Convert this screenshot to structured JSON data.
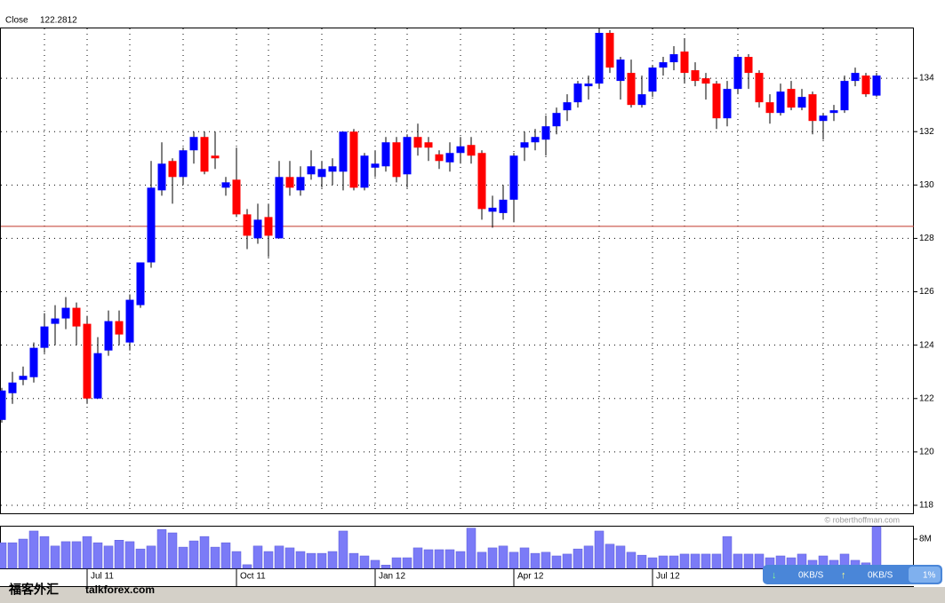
{
  "chart_data": {
    "type": "candlestick",
    "header_label": "Close",
    "header_value": 122.2812,
    "watermark": "© roberthoffman.com",
    "site_cn": "福客外汇",
    "site": "talkforex.com",
    "up_color": "#0000ff",
    "down_color": "#ff0000",
    "cursor_color": "#c0392b",
    "cursor_line": 128.45,
    "categories": [
      null,
      null,
      null,
      null,
      null,
      null,
      null,
      null,
      "Jul 11",
      null,
      null,
      null,
      null,
      null,
      null,
      null,
      null,
      null,
      null,
      null,
      null,
      null,
      "Oct 11",
      null,
      null,
      null,
      null,
      null,
      null,
      null,
      null,
      null,
      null,
      null,
      null,
      "Jan 12",
      null,
      null,
      null,
      null,
      null,
      null,
      null,
      null,
      null,
      null,
      null,
      null,
      "Apr 12",
      null,
      null,
      null,
      null,
      null,
      null,
      null,
      null,
      null,
      null,
      null,
      null,
      "Jul 12",
      null,
      null,
      null,
      null,
      null,
      null,
      null,
      null,
      null,
      null,
      null,
      null,
      null,
      null,
      null,
      null,
      null,
      null,
      null,
      null,
      null
    ],
    "open": [
      121.2,
      122.2,
      122.7,
      122.8,
      123.9,
      124.8,
      125.0,
      125.4,
      124.8,
      122.0,
      123.8,
      124.9,
      124.1,
      125.5,
      127.1,
      129.8,
      130.9,
      130.3,
      131.3,
      131.8,
      131.1,
      129.9,
      130.2,
      128.9,
      128.0,
      128.8,
      128.0,
      130.3,
      129.8,
      130.4,
      130.3,
      130.5,
      130.5,
      132.0,
      129.9,
      130.65,
      130.7,
      131.6,
      130.4,
      131.8,
      131.6,
      131.15,
      130.85,
      131.2,
      131.5,
      131.2,
      129.0,
      128.95,
      129.45,
      131.4,
      131.6,
      131.7,
      132.2,
      132.8,
      133.1,
      133.7,
      133.8,
      135.7,
      133.9,
      134.2,
      133.0,
      133.5,
      134.4,
      134.6,
      135.0,
      134.3,
      134.0,
      133.8,
      132.5,
      133.6,
      134.8,
      134.2,
      133.1,
      132.7,
      133.6,
      132.9,
      133.4,
      132.4,
      132.7,
      132.8,
      133.9,
      134.1,
      133.35
    ],
    "high": [
      122.4,
      123.0,
      123.2,
      124.1,
      125.2,
      125.5,
      125.8,
      125.6,
      125.1,
      124.3,
      125.3,
      125.3,
      125.9,
      127.1,
      130.9,
      131.6,
      131.0,
      131.4,
      132.0,
      132.0,
      132.0,
      130.3,
      131.4,
      129.1,
      129.3,
      129.3,
      130.9,
      130.9,
      130.7,
      131.3,
      130.9,
      131.0,
      132.0,
      132.1,
      131.2,
      131.3,
      131.8,
      131.8,
      131.9,
      132.3,
      131.8,
      131.3,
      131.6,
      131.8,
      131.8,
      131.3,
      129.6,
      130.0,
      131.2,
      132.0,
      132.1,
      132.6,
      132.9,
      133.4,
      133.9,
      134.1,
      135.9,
      135.8,
      134.8,
      134.7,
      134.1,
      134.5,
      134.8,
      135.2,
      135.5,
      134.6,
      134.2,
      133.9,
      133.9,
      134.9,
      134.9,
      134.3,
      133.4,
      133.8,
      133.9,
      133.6,
      133.5,
      132.7,
      133.0,
      134.1,
      134.4,
      134.2,
      134.2
    ],
    "low": [
      121.1,
      121.8,
      122.5,
      122.6,
      123.7,
      124.0,
      124.6,
      124.0,
      121.8,
      122.0,
      123.6,
      124.0,
      123.8,
      125.4,
      126.9,
      129.6,
      129.3,
      130.0,
      130.8,
      130.4,
      130.6,
      129.6,
      128.8,
      127.6,
      127.8,
      127.3,
      128.0,
      129.6,
      129.6,
      130.2,
      129.9,
      130.0,
      129.8,
      129.8,
      129.8,
      130.3,
      130.5,
      130.1,
      129.9,
      131.1,
      130.9,
      130.6,
      130.5,
      130.8,
      130.8,
      128.7,
      128.4,
      128.7,
      128.6,
      130.9,
      131.3,
      131.1,
      131.9,
      132.4,
      132.9,
      133.2,
      133.6,
      134.2,
      133.2,
      132.9,
      132.9,
      133.3,
      134.1,
      134.3,
      133.8,
      133.7,
      133.2,
      132.1,
      132.2,
      133.4,
      133.6,
      132.9,
      132.3,
      132.6,
      132.8,
      132.8,
      131.9,
      131.7,
      132.4,
      132.7,
      133.7,
      133.3,
      133.3
    ],
    "close": [
      122.3,
      122.6,
      122.85,
      123.9,
      124.7,
      125.0,
      125.4,
      124.7,
      122.0,
      123.7,
      124.9,
      124.4,
      125.7,
      127.1,
      129.9,
      130.8,
      130.3,
      131.3,
      131.8,
      130.5,
      131.0,
      130.1,
      128.9,
      128.1,
      128.7,
      128.1,
      130.3,
      129.9,
      130.3,
      130.7,
      130.6,
      130.7,
      132.0,
      129.9,
      131.1,
      130.8,
      131.6,
      130.3,
      131.8,
      131.4,
      131.4,
      130.9,
      131.2,
      131.45,
      131.1,
      129.1,
      129.15,
      129.45,
      131.1,
      131.6,
      131.8,
      132.2,
      132.7,
      133.1,
      133.8,
      133.8,
      135.7,
      134.4,
      134.7,
      133.0,
      133.4,
      134.4,
      134.6,
      134.9,
      134.2,
      133.9,
      133.8,
      132.5,
      133.6,
      134.8,
      134.2,
      133.1,
      132.7,
      133.5,
      132.9,
      133.3,
      132.4,
      132.6,
      132.8,
      133.9,
      134.2,
      133.4,
      134.1
    ],
    "ylim": [
      117.7,
      135.9
    ],
    "yticks": [
      118,
      120,
      122,
      124,
      126,
      128,
      130,
      132,
      134
    ],
    "grid": true,
    "volume": {
      "color": "#7b7bf7",
      "values": [
        7.0,
        7.0,
        8.0,
        10.2,
        8.7,
        6.1,
        7.3,
        7.3,
        8.7,
        7.0,
        6.1,
        7.7,
        7.3,
        5.3,
        6.1,
        10.6,
        9.7,
        5.8,
        7.5,
        8.7,
        5.8,
        7.0,
        4.6,
        1.0,
        6.1,
        4.6,
        6.1,
        5.6,
        4.6,
        4.1,
        4.1,
        4.6,
        10.2,
        4.1,
        3.4,
        2.2,
        0.9,
        2.9,
        2.9,
        5.6,
        5.1,
        5.1,
        5.1,
        4.6,
        11.0,
        4.4,
        5.6,
        6.1,
        4.4,
        5.6,
        4.1,
        4.4,
        3.4,
        3.9,
        5.3,
        6.1,
        10.2,
        6.6,
        6.1,
        4.4,
        3.6,
        2.9,
        3.4,
        3.4,
        3.9,
        3.9,
        3.9,
        3.9,
        8.7,
        3.9,
        3.9,
        3.9,
        2.9,
        3.4,
        2.9,
        3.9,
        2.2,
        3.4,
        2.2,
        3.9,
        2.2,
        1.5,
        11.4
      ],
      "ylim": [
        0,
        11.4
      ],
      "yticks": [
        {
          "value": 8,
          "label": "8M"
        }
      ]
    },
    "net_widget": {
      "down": "0KB/S",
      "up": "0KB/S",
      "cpu": "1%"
    }
  }
}
